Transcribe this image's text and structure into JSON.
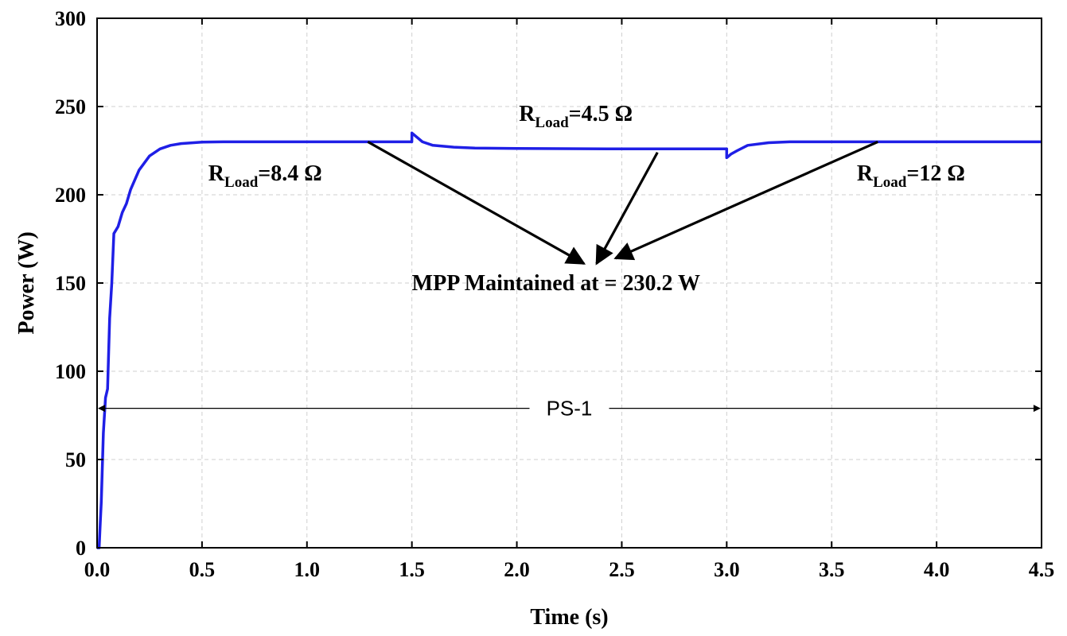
{
  "chart_data": {
    "type": "line",
    "xlabel": "Time (s)",
    "ylabel": "Power (W)",
    "xlim": [
      0,
      4.5
    ],
    "ylim": [
      0,
      300
    ],
    "xticks": [
      "0.0",
      "0.5",
      "1.0",
      "1.5",
      "2.0",
      "2.5",
      "3.0",
      "3.5",
      "4.0",
      "4.5"
    ],
    "yticks": [
      "0",
      "50",
      "100",
      "150",
      "200",
      "250",
      "300"
    ],
    "grid": true,
    "series": [
      {
        "name": "Power",
        "color": "#1f1fe6",
        "x": [
          0.0,
          0.01,
          0.015,
          0.02,
          0.03,
          0.04,
          0.05,
          0.06,
          0.07,
          0.08,
          0.1,
          0.12,
          0.14,
          0.16,
          0.2,
          0.25,
          0.3,
          0.35,
          0.4,
          0.5,
          0.6,
          0.8,
          1.0,
          1.2,
          1.4999,
          1.5,
          1.52,
          1.55,
          1.6,
          1.7,
          1.8,
          2.0,
          2.5,
          2.9999,
          3.0,
          3.02,
          3.05,
          3.1,
          3.2,
          3.3,
          3.5,
          4.0,
          4.5
        ],
        "y": [
          0,
          0,
          14,
          26,
          65,
          85,
          90,
          130,
          150,
          178,
          182,
          190,
          195,
          203,
          214,
          222,
          226,
          228,
          229,
          229.8,
          230,
          230,
          230,
          230,
          230,
          235,
          233,
          230,
          228,
          227,
          226.5,
          226.2,
          226,
          226,
          221,
          223,
          225,
          228,
          229.5,
          230,
          230,
          230,
          230
        ]
      }
    ],
    "annotations": [
      {
        "main": "R",
        "sub": "Load",
        "suffix": "=8.4 Ω",
        "at": [
          0.53,
          208
        ]
      },
      {
        "main": "R",
        "sub": "Load",
        "suffix": "=4.5 Ω",
        "at": [
          2.01,
          242
        ]
      },
      {
        "main": "R",
        "sub": "Load",
        "suffix": "=12 Ω",
        "at": [
          3.62,
          208
        ]
      },
      {
        "text": "MPP Maintained at = 230.2 W",
        "at": [
          1.5,
          146
        ]
      },
      {
        "text": "PS-1",
        "at": [
          2.2,
          78
        ]
      }
    ],
    "arrows": [
      {
        "from": [
          1.29,
          230
        ],
        "to": [
          2.32,
          161
        ]
      },
      {
        "from": [
          2.67,
          224
        ],
        "to": [
          2.38,
          161
        ]
      },
      {
        "from": [
          3.72,
          230
        ],
        "to": [
          2.47,
          164
        ]
      }
    ],
    "span_arrow": {
      "from_x": 0.0,
      "to_x": 4.5,
      "y": 79,
      "label": "PS-1"
    }
  }
}
